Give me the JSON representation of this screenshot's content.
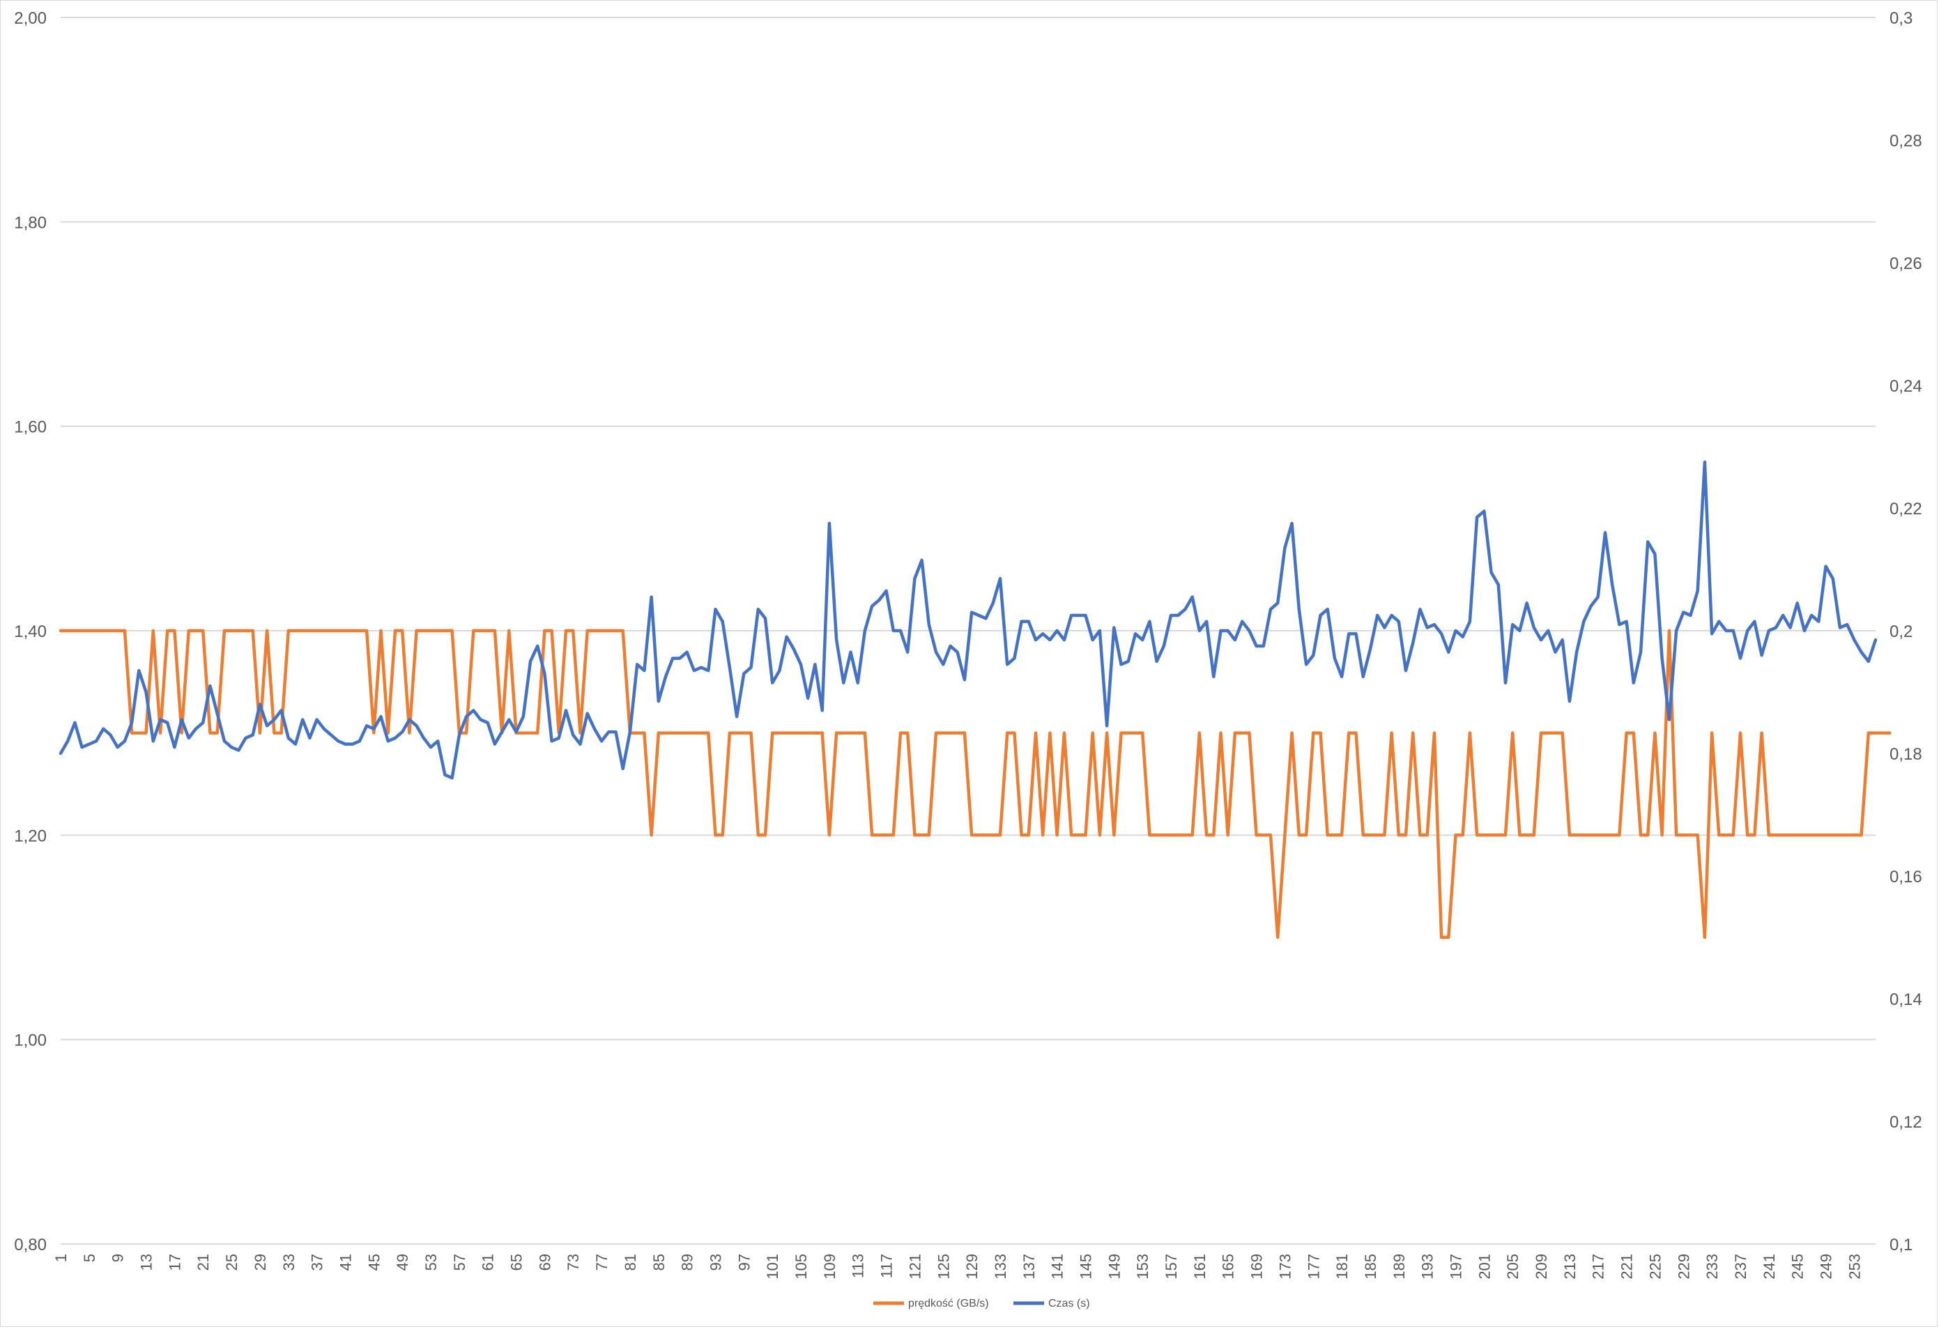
{
  "colors": {
    "speed": "#ED7D31",
    "time": "#4472C4",
    "grid": "#d9d9d9",
    "text": "#595959"
  },
  "chart_data": {
    "type": "line",
    "x_start": 1,
    "x_end": 256,
    "x_tick_labels": [
      "1",
      "5",
      "9",
      "13",
      "17",
      "21",
      "25",
      "29",
      "33",
      "37",
      "41",
      "45",
      "49",
      "53",
      "57",
      "61",
      "65",
      "69",
      "73",
      "77",
      "81",
      "85",
      "89",
      "93",
      "97",
      "101",
      "105",
      "109",
      "113",
      "117",
      "121",
      "125",
      "129",
      "133",
      "137",
      "141",
      "145",
      "149",
      "153",
      "157",
      "161",
      "165",
      "169",
      "173",
      "177",
      "181",
      "185",
      "189",
      "193",
      "197",
      "201",
      "205",
      "209",
      "213",
      "217",
      "221",
      "225",
      "229",
      "233",
      "237",
      "241",
      "245",
      "249",
      "253"
    ],
    "y_left": {
      "ylim": [
        0.8,
        2.0
      ],
      "tick_labels": [
        "0,80",
        "1,00",
        "1,20",
        "1,40",
        "1,60",
        "1,80",
        "2,00"
      ]
    },
    "y_right": {
      "ylim": [
        0.1,
        0.3
      ],
      "tick_labels": [
        "0,1",
        "0,12",
        "0,14",
        "0,16",
        "0,18",
        "0,2",
        "0,22",
        "0,24",
        "0,26",
        "0,28",
        "0,3"
      ]
    },
    "grid": true,
    "legend_position": "bottom",
    "series": [
      {
        "name": "prędkość (GB/s)",
        "axis": "left",
        "color": "#ED7D31",
        "values": [
          1.4,
          1.4,
          1.4,
          1.4,
          1.4,
          1.4,
          1.4,
          1.4,
          1.4,
          1.4,
          1.3,
          1.3,
          1.3,
          1.4,
          1.3,
          1.4,
          1.4,
          1.3,
          1.4,
          1.4,
          1.4,
          1.3,
          1.3,
          1.4,
          1.4,
          1.4,
          1.4,
          1.4,
          1.3,
          1.4,
          1.3,
          1.3,
          1.4,
          1.4,
          1.4,
          1.4,
          1.4,
          1.4,
          1.4,
          1.4,
          1.4,
          1.4,
          1.4,
          1.4,
          1.3,
          1.4,
          1.3,
          1.4,
          1.4,
          1.3,
          1.4,
          1.4,
          1.4,
          1.4,
          1.4,
          1.4,
          1.3,
          1.3,
          1.4,
          1.4,
          1.4,
          1.4,
          1.3,
          1.4,
          1.3,
          1.3,
          1.3,
          1.3,
          1.4,
          1.4,
          1.3,
          1.4,
          1.4,
          1.3,
          1.4,
          1.4,
          1.4,
          1.4,
          1.4,
          1.4,
          1.3,
          1.3,
          1.3,
          1.2,
          1.3,
          1.3,
          1.3,
          1.3,
          1.3,
          1.3,
          1.3,
          1.3,
          1.2,
          1.2,
          1.3,
          1.3,
          1.3,
          1.3,
          1.2,
          1.2,
          1.3,
          1.3,
          1.3,
          1.3,
          1.3,
          1.3,
          1.3,
          1.3,
          1.2,
          1.3,
          1.3,
          1.3,
          1.3,
          1.3,
          1.2,
          1.2,
          1.2,
          1.2,
          1.3,
          1.3,
          1.2,
          1.2,
          1.2,
          1.3,
          1.3,
          1.3,
          1.3,
          1.3,
          1.2,
          1.2,
          1.2,
          1.2,
          1.2,
          1.3,
          1.3,
          1.2,
          1.2,
          1.3,
          1.2,
          1.3,
          1.2,
          1.3,
          1.2,
          1.2,
          1.2,
          1.3,
          1.2,
          1.3,
          1.2,
          1.3,
          1.3,
          1.3,
          1.3,
          1.2,
          1.2,
          1.2,
          1.2,
          1.2,
          1.2,
          1.2,
          1.3,
          1.2,
          1.2,
          1.3,
          1.2,
          1.3,
          1.3,
          1.3,
          1.2,
          1.2,
          1.2,
          1.1,
          1.2,
          1.3,
          1.2,
          1.2,
          1.3,
          1.3,
          1.2,
          1.2,
          1.2,
          1.3,
          1.3,
          1.2,
          1.2,
          1.2,
          1.2,
          1.3,
          1.2,
          1.2,
          1.3,
          1.2,
          1.2,
          1.3,
          1.1,
          1.1,
          1.2,
          1.2,
          1.3,
          1.2,
          1.2,
          1.2,
          1.2,
          1.2,
          1.3,
          1.2,
          1.2,
          1.2,
          1.3,
          1.3,
          1.3,
          1.3,
          1.2,
          1.2,
          1.2,
          1.2,
          1.2,
          1.2,
          1.2,
          1.2,
          1.3,
          1.3,
          1.2,
          1.2,
          1.3,
          1.2,
          1.4,
          1.2,
          1.2,
          1.2,
          1.2,
          1.1,
          1.3,
          1.2,
          1.2,
          1.2,
          1.3,
          1.2,
          1.2,
          1.3,
          1.2,
          1.2,
          1.2,
          1.2,
          1.2,
          1.2,
          1.2,
          1.2,
          1.2,
          1.2,
          1.2,
          1.2,
          1.2,
          1.2,
          1.3,
          1.3,
          1.3,
          1.3
        ]
      },
      {
        "name": "Czas (s)",
        "axis": "right",
        "color": "#4472C4",
        "values": [
          0.18,
          0.182,
          0.185,
          0.181,
          0.1815,
          0.182,
          0.184,
          0.183,
          0.181,
          0.182,
          0.185,
          0.1935,
          0.19,
          0.182,
          0.1855,
          0.185,
          0.181,
          0.1855,
          0.1825,
          0.184,
          0.185,
          0.191,
          0.1865,
          0.182,
          0.181,
          0.1805,
          0.1825,
          0.183,
          0.188,
          0.1845,
          0.1855,
          0.187,
          0.1825,
          0.1815,
          0.1855,
          0.1825,
          0.1855,
          0.184,
          0.183,
          0.182,
          0.1815,
          0.1815,
          0.182,
          0.1845,
          0.184,
          0.186,
          0.182,
          0.1825,
          0.1835,
          0.1855,
          0.1845,
          0.1825,
          0.181,
          0.182,
          0.1765,
          0.176,
          0.183,
          0.186,
          0.187,
          0.1855,
          0.185,
          0.1815,
          0.1835,
          0.1855,
          0.1835,
          0.186,
          0.195,
          0.1975,
          0.193,
          0.182,
          0.1825,
          0.187,
          0.183,
          0.1815,
          0.1865,
          0.184,
          0.182,
          0.1835,
          0.1835,
          0.1775,
          0.1835,
          0.1945,
          0.1935,
          0.2055,
          0.1885,
          0.1925,
          0.1955,
          0.1955,
          0.1965,
          0.1935,
          0.194,
          0.1935,
          0.2035,
          0.2015,
          0.194,
          0.186,
          0.193,
          0.194,
          0.2035,
          0.202,
          0.1915,
          0.1935,
          0.199,
          0.197,
          0.1945,
          0.189,
          0.1945,
          0.187,
          0.2175,
          0.1985,
          0.1915,
          0.1965,
          0.1915,
          0.2,
          0.204,
          0.205,
          0.2065,
          0.2,
          0.2,
          0.1965,
          0.2085,
          0.2115,
          0.201,
          0.1965,
          0.1945,
          0.1975,
          0.1965,
          0.192,
          0.203,
          0.2025,
          0.202,
          0.2045,
          0.2085,
          0.1945,
          0.1955,
          0.2015,
          0.2015,
          0.1985,
          0.1995,
          0.1985,
          0.2,
          0.1985,
          0.2025,
          0.2025,
          0.2025,
          0.1985,
          0.2,
          0.1845,
          0.2005,
          0.1945,
          0.195,
          0.1995,
          0.1985,
          0.2015,
          0.195,
          0.1975,
          0.2025,
          0.2025,
          0.2035,
          0.2055,
          0.2,
          0.2015,
          0.1925,
          0.2,
          0.2,
          0.1985,
          0.2015,
          0.2,
          0.1975,
          0.1975,
          0.2035,
          0.2045,
          0.2135,
          0.2175,
          0.2035,
          0.1945,
          0.196,
          0.2025,
          0.2035,
          0.1955,
          0.1925,
          0.1995,
          0.1995,
          0.1925,
          0.197,
          0.2025,
          0.2005,
          0.2025,
          0.2015,
          0.1935,
          0.198,
          0.2035,
          0.2005,
          0.201,
          0.1995,
          0.1965,
          0.2,
          0.199,
          0.2015,
          0.2185,
          0.2195,
          0.2095,
          0.2075,
          0.1915,
          0.201,
          0.2,
          0.2045,
          0.2005,
          0.1985,
          0.2,
          0.1965,
          0.1985,
          0.1885,
          0.1965,
          0.2015,
          0.204,
          0.2055,
          0.216,
          0.2075,
          0.201,
          0.2015,
          0.1915,
          0.1965,
          0.2145,
          0.2125,
          0.1955,
          0.1855,
          0.2,
          0.203,
          0.2025,
          0.2065,
          0.2275,
          0.1995,
          0.2015,
          0.2,
          0.2,
          0.1955,
          0.2,
          0.2015,
          0.196,
          0.2,
          0.2005,
          0.2025,
          0.2005,
          0.2045,
          0.2,
          0.2025,
          0.2015,
          0.2105,
          0.2085,
          0.2005,
          0.201,
          0.1985,
          0.1965,
          0.195,
          0.1985
        ]
      }
    ]
  }
}
